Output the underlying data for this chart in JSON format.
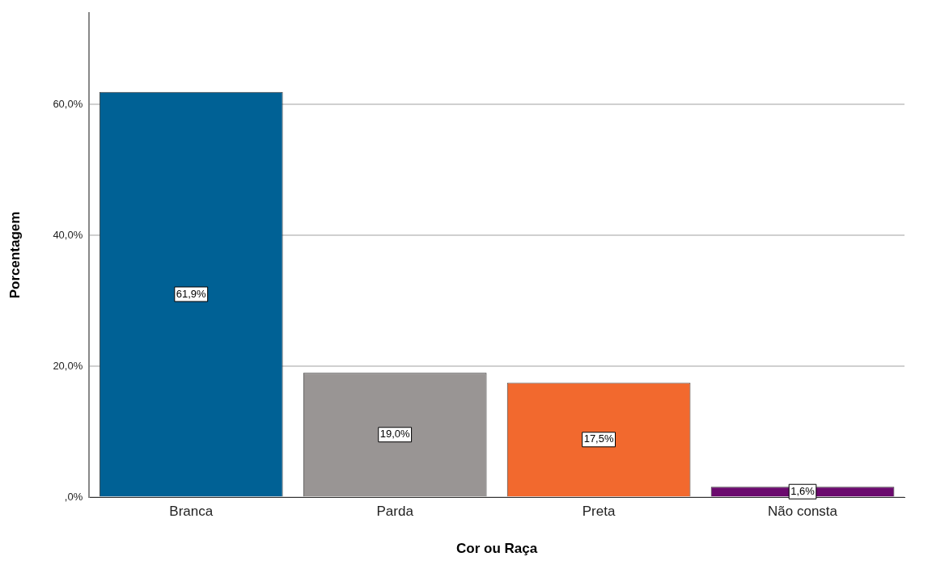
{
  "chart_data": {
    "type": "bar",
    "xlabel": "Cor ou Raça",
    "ylabel": "Porcentagem",
    "categories": [
      "Branca",
      "Parda",
      "Preta",
      "Não consta"
    ],
    "values": [
      61.9,
      19.0,
      17.5,
      1.6
    ],
    "colors": [
      "#006195",
      "#999594",
      "#f2692e",
      "#6b0a6e"
    ],
    "value_labels": [
      "61,9%",
      "19,0%",
      "17,5%",
      "1,6%"
    ],
    "ylim": [
      0,
      74
    ],
    "yticks": [
      {
        "value": 0,
        "label": ",0%"
      },
      {
        "value": 20,
        "label": "20,0%"
      },
      {
        "value": 40,
        "label": "40,0%"
      },
      {
        "value": 60,
        "label": "60,0%"
      }
    ],
    "grid": "y",
    "legend": false
  }
}
